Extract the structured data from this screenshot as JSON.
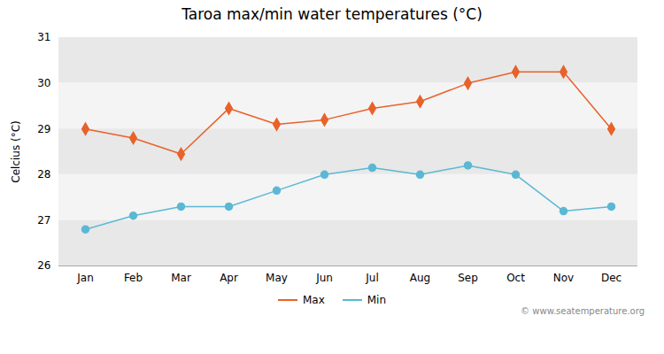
{
  "chart_data": {
    "type": "line",
    "title": "Taroa max/min water temperatures (°C)",
    "ylabel": "Celcius (°C)",
    "categories": [
      "Jan",
      "Feb",
      "Mar",
      "Apr",
      "May",
      "Jun",
      "Jul",
      "Aug",
      "Sep",
      "Oct",
      "Nov",
      "Dec"
    ],
    "series": [
      {
        "name": "Max",
        "color": "#E8622A",
        "marker": "diamond",
        "line_style": "solid",
        "values": [
          29.0,
          28.8,
          28.45,
          29.45,
          29.1,
          29.2,
          29.45,
          29.6,
          30.0,
          30.25,
          30.25,
          29.0
        ]
      },
      {
        "name": "Min",
        "color": "#5BB8D4",
        "marker": "circle",
        "line_style": "solid",
        "values": [
          26.8,
          27.1,
          27.3,
          27.3,
          27.65,
          28.0,
          28.15,
          28.0,
          28.2,
          28.0,
          27.2,
          27.3
        ]
      }
    ],
    "ylim": [
      26,
      31
    ],
    "yticks": [
      26,
      27,
      28,
      29,
      30,
      31
    ],
    "legend": "bottom",
    "annotations": [
      "© www.seatemperature.org"
    ]
  }
}
